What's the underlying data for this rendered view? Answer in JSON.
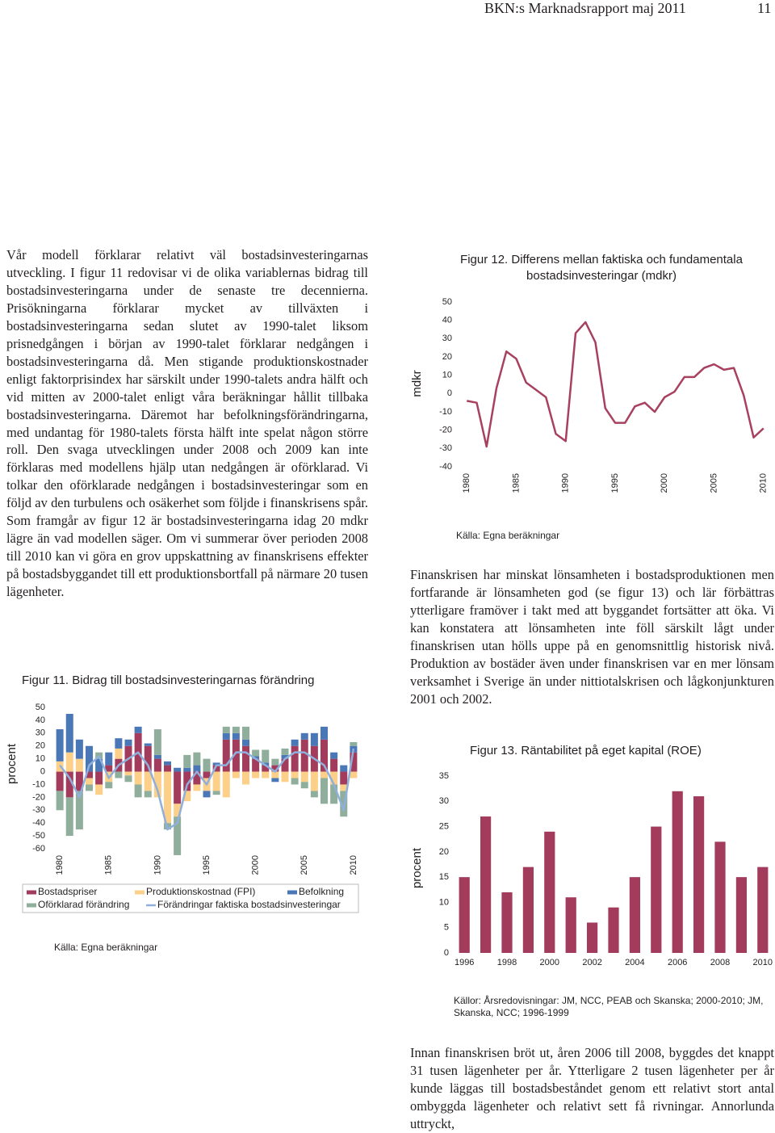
{
  "header": {
    "title": "BKN:s Marknadsrapport maj 2011",
    "page": 11
  },
  "text": {
    "left": "Vår modell förklarar relativt väl bostadsinvesteringarnas utveckling. I figur 11 redovisar vi de olika variablernas bidrag till bostadsinvesteringarna under de senaste tre decennierna. Prisökningarna förklarar mycket av tillväxten i bostadsinvesteringarna sedan slutet av 1990-talet liksom prisnedgången i början av 1990-talet förklarar nedgången i bostadsinvesteringarna då. Men stigande produktionskostnader enligt faktorprisindex har särskilt under 1990-talets andra hälft och vid mitten av 2000-talet enligt våra beräkningar hållit tillbaka bostadsinvesteringarna. Däremot har befolkningsförändringarna, med undantag för 1980-talets första hälft inte spelat någon större roll. Den svaga utvecklingen under 2008 och 2009 kan inte förklaras med modellens hjälp utan nedgången är oförklarad. Vi tolkar den oförklarade nedgången i bostadsinvesteringar som en följd av den turbulens och osäkerhet som följde i finanskrisens spår. Som framgår av figur 12 är bostadsinvesteringarna idag 20 mdkr lägre än vad modellen säger. Om vi summerar över perioden 2008 till 2010 kan vi göra en grov uppskattning av finanskrisens effekter på bostadsbyggandet till ett produktionsbortfall på närmare 20 tusen lägenheter.",
    "right_1": "Finanskrisen har minskat lönsamheten i bostadsproduktionen men fortfarande är lönsamheten god (se figur 13) och lär förbättras ytterligare framöver i takt med att byggandet fortsätter att öka. Vi kan konstatera att lönsamheten inte föll särskilt lågt under finanskrisen utan hölls uppe på en genomsnittlig historisk nivå. Produktion av bostäder även under finanskrisen var en mer lönsam verksamhet i Sverige än under nittiotalskrisen och lågkonjunkturen 2001 och 2002.",
    "right_2": "Innan finanskrisen bröt ut, åren 2006 till 2008, byggdes det knappt 31 tusen lägenheter per år. Ytterligare 2 tusen lägenheter per år kunde läggas till bostadsbeståndet genom ett relativt stort antal ombyggda lägenheter och relativt sett få rivningar. Annorlunda uttryckt,"
  },
  "chart_data": [
    {
      "type": "bar",
      "stacked": true,
      "title": "Figur 11. Bidrag till bostadsinvesteringarnas förändring",
      "ylabel": "procent",
      "note": "Källa: Egna beräkningar",
      "x": [
        1980,
        1981,
        1982,
        1983,
        1984,
        1985,
        1986,
        1987,
        1988,
        1989,
        1990,
        1991,
        1992,
        1993,
        1994,
        1995,
        1996,
        1997,
        1998,
        1999,
        2000,
        2001,
        2002,
        2003,
        2004,
        2005,
        2006,
        2007,
        2008,
        2009,
        2010
      ],
      "xlim": [
        1979,
        2011
      ],
      "xticks": [
        1980,
        1985,
        1990,
        1995,
        2000,
        2005,
        2010
      ],
      "ylim": [
        -60,
        50
      ],
      "yticks": [
        50,
        40,
        30,
        20,
        10,
        0,
        -10,
        -20,
        -30,
        -40,
        -50,
        -60
      ],
      "series": [
        {
          "name": "Bostadspriser",
          "color": "#a33b5c",
          "values": [
            -15,
            -20,
            -15,
            -5,
            -10,
            5,
            10,
            20,
            30,
            20,
            10,
            5,
            -25,
            -15,
            -10,
            -5,
            5,
            25,
            25,
            20,
            10,
            5,
            5,
            10,
            20,
            25,
            20,
            25,
            10,
            -10,
            15
          ]
        },
        {
          "name": "Produktionskostnad (FPI)",
          "color": "#fcd088",
          "values": [
            8,
            15,
            10,
            -5,
            -8,
            -8,
            8,
            -3,
            -10,
            -15,
            -20,
            -40,
            -10,
            -8,
            -5,
            -10,
            -15,
            -20,
            -5,
            -10,
            -5,
            -5,
            -5,
            -8,
            -5,
            -8,
            -15,
            -5,
            -10,
            -5,
            -5
          ]
        },
        {
          "name": "Befolkning",
          "color": "#4a77b6",
          "values": [
            25,
            30,
            15,
            20,
            10,
            10,
            8,
            5,
            5,
            2,
            3,
            3,
            3,
            3,
            5,
            -5,
            2,
            5,
            5,
            5,
            2,
            2,
            -3,
            3,
            5,
            5,
            10,
            10,
            5,
            5,
            5
          ]
        },
        {
          "name": "Oförklarad förändring",
          "color": "#8fae9b",
          "values": [
            -15,
            -30,
            -30,
            -5,
            5,
            -5,
            -5,
            -5,
            -10,
            -5,
            20,
            -5,
            -30,
            10,
            10,
            10,
            -3,
            5,
            5,
            10,
            5,
            10,
            5,
            5,
            -5,
            -5,
            -5,
            -20,
            -15,
            -20,
            3
          ]
        },
        {
          "name": "Förändringar faktiska bostadsinvesteringar",
          "color": "#8fb0dc",
          "type": "line",
          "values": [
            5,
            -5,
            -20,
            5,
            12,
            -5,
            5,
            10,
            15,
            5,
            -15,
            -45,
            -40,
            -10,
            0,
            -10,
            5,
            5,
            15,
            15,
            10,
            5,
            0,
            10,
            15,
            15,
            10,
            5,
            -10,
            -30,
            18
          ]
        }
      ]
    },
    {
      "type": "line",
      "title": "Figur 12. Differens mellan faktiska och fundamentala bostadsinvesteringar (mdkr)",
      "ylabel": "mdkr",
      "note": "Källa: Egna beräkningar",
      "color": "#a8415f",
      "x": [
        1980,
        1981,
        1982,
        1983,
        1984,
        1985,
        1986,
        1987,
        1988,
        1989,
        1990,
        1991,
        1992,
        1993,
        1994,
        1995,
        1996,
        1997,
        1998,
        1999,
        2000,
        2001,
        2002,
        2003,
        2004,
        2005,
        2006,
        2007,
        2008,
        2009,
        2010
      ],
      "values": [
        -4,
        -5,
        -29,
        3,
        23,
        19,
        6,
        2,
        -2,
        -22,
        -26,
        33,
        39,
        28,
        -8,
        -16,
        -16,
        -7,
        -5,
        -10,
        -2,
        1,
        9,
        9,
        14,
        16,
        13,
        14,
        -1,
        -24,
        -19
      ],
      "xlim": [
        1979,
        2011
      ],
      "xticks": [
        1980,
        1985,
        1990,
        1995,
        2000,
        2005,
        2010
      ],
      "ylim": [
        -40,
        50
      ],
      "yticks": [
        50,
        40,
        30,
        20,
        10,
        0,
        -10,
        -20,
        -30,
        -40
      ]
    },
    {
      "type": "bar",
      "title": "Figur 13. Räntabilitet på eget kapital (ROE)",
      "ylabel": "procent",
      "note": "Källor: Årsredovisningar: JM, NCC, PEAB och Skanska; 2000-2010; JM, Skanska, NCC; 1996-1999",
      "color": "#a23b5c",
      "categories": [
        "1996",
        null,
        "1998",
        null,
        "2000",
        null,
        "2002",
        null,
        "2004",
        null,
        "2006",
        null,
        "2008",
        null,
        "2010"
      ],
      "values": [
        15,
        27,
        12,
        17,
        24,
        11,
        6,
        9,
        15,
        25,
        32,
        31,
        22,
        15,
        17
      ],
      "ylim": [
        0,
        35
      ],
      "yticks": [
        0,
        5,
        10,
        15,
        20,
        25,
        30,
        35
      ]
    }
  ]
}
